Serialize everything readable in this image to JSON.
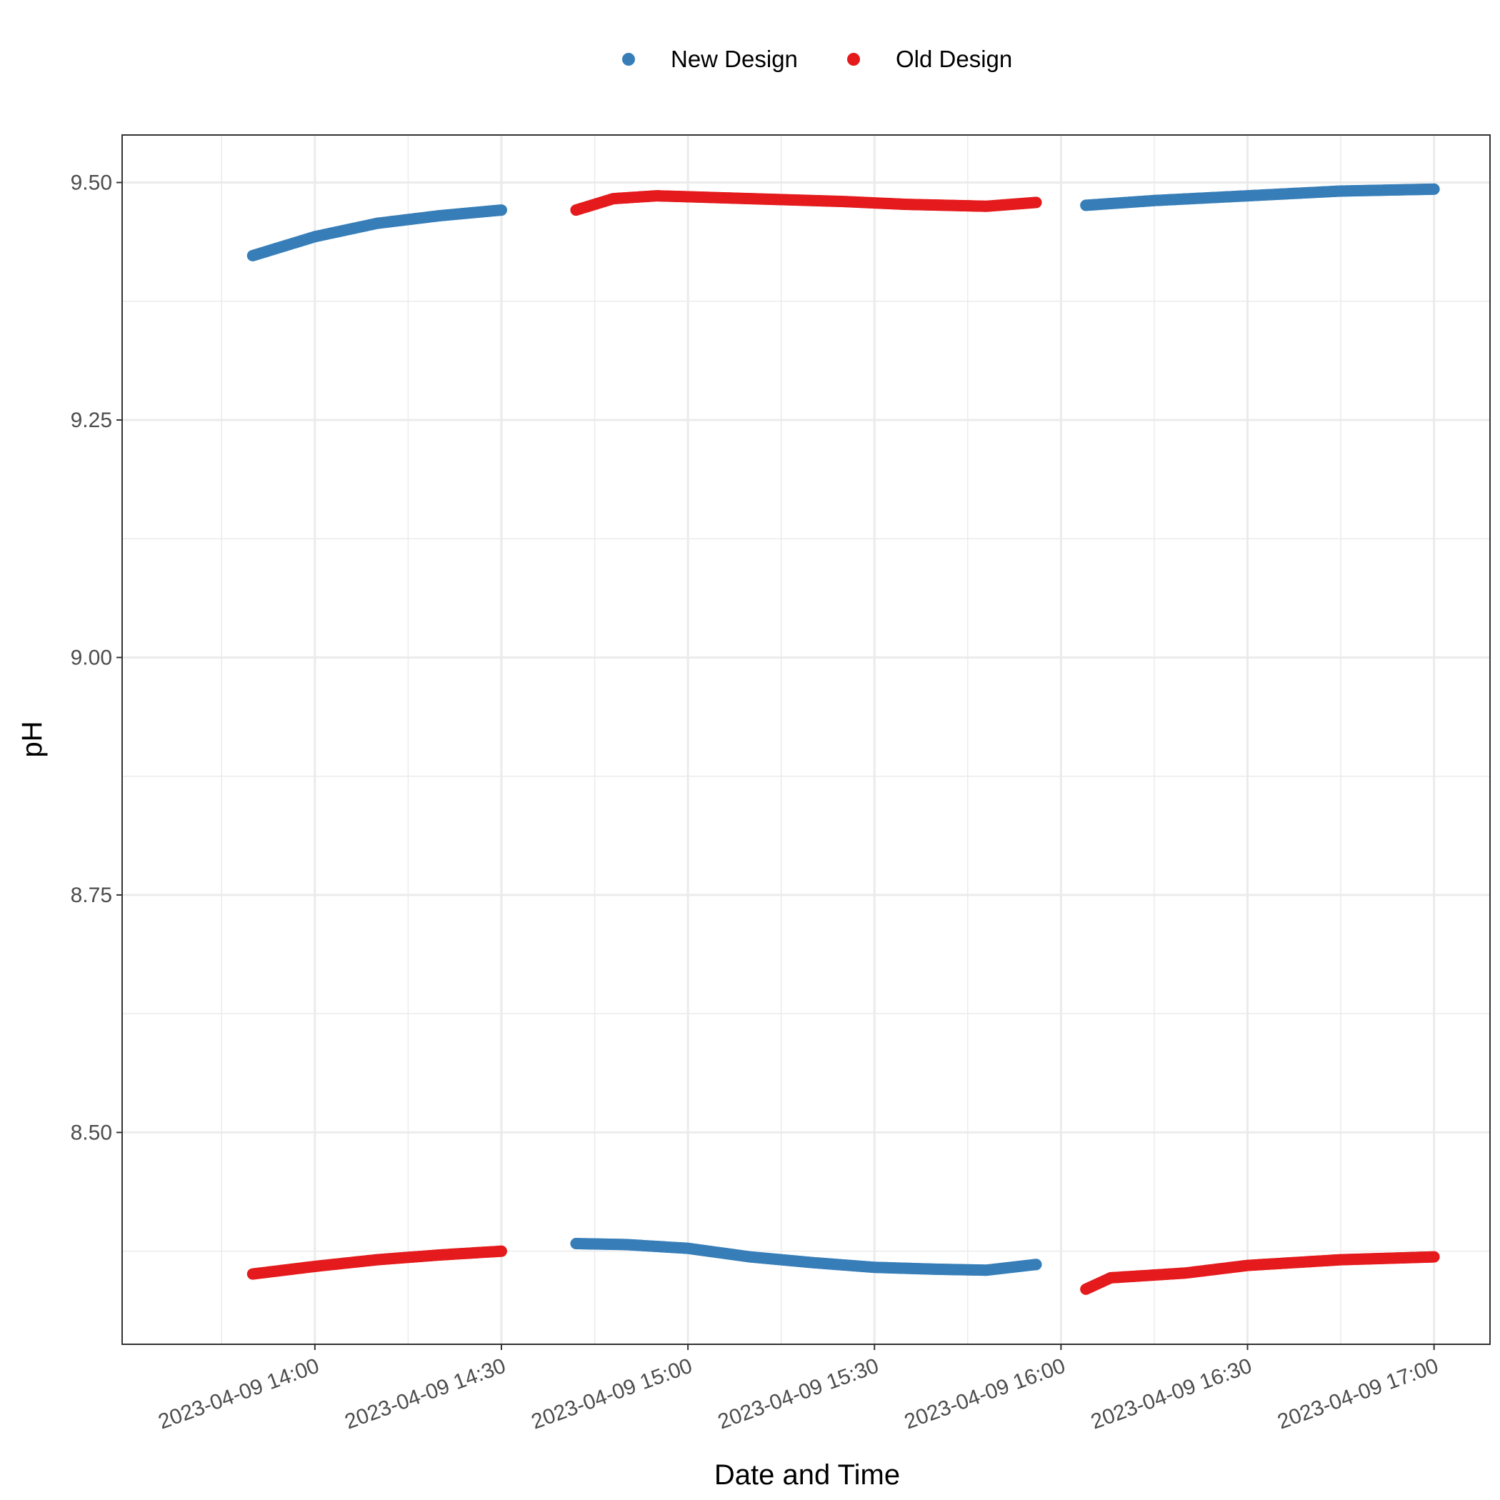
{
  "chart_data": {
    "type": "scatter",
    "xlabel": "Date and Time",
    "ylabel": "pH",
    "x_ticks": [
      "2023-04-09 14:00",
      "2023-04-09 14:30",
      "2023-04-09 15:00",
      "2023-04-09 15:30",
      "2023-04-09 16:00",
      "2023-04-09 16:30",
      "2023-04-09 17:00"
    ],
    "y_ticks": [
      "8.50",
      "8.75",
      "9.00",
      "9.25",
      "9.50"
    ],
    "xlim": [
      "2023-04-09 13:29",
      "2023-04-09 17:09"
    ],
    "ylim": [
      8.277,
      9.55
    ],
    "grid": true,
    "legend_position": "top",
    "series": [
      {
        "name": "New Design",
        "color": "#377eb8",
        "segments": [
          {
            "points": [
              [
                "2023-04-09 13:50",
                9.423
              ],
              [
                "2023-04-09 14:00",
                9.443
              ],
              [
                "2023-04-09 14:10",
                9.457
              ],
              [
                "2023-04-09 14:20",
                9.465
              ],
              [
                "2023-04-09 14:30",
                9.471
              ]
            ]
          },
          {
            "points": [
              [
                "2023-04-09 14:42",
                8.383
              ],
              [
                "2023-04-09 14:50",
                8.382
              ],
              [
                "2023-04-09 15:00",
                8.378
              ],
              [
                "2023-04-09 15:10",
                8.369
              ],
              [
                "2023-04-09 15:20",
                8.363
              ],
              [
                "2023-04-09 15:30",
                8.358
              ],
              [
                "2023-04-09 15:40",
                8.356
              ],
              [
                "2023-04-09 15:48",
                8.355
              ],
              [
                "2023-04-09 15:56",
                8.361
              ]
            ]
          },
          {
            "points": [
              [
                "2023-04-09 16:04",
                9.476
              ],
              [
                "2023-04-09 16:15",
                9.481
              ],
              [
                "2023-04-09 16:30",
                9.486
              ],
              [
                "2023-04-09 16:45",
                9.491
              ],
              [
                "2023-04-09 17:00",
                9.493
              ]
            ]
          }
        ]
      },
      {
        "name": "Old Design",
        "color": "#e41a1c",
        "segments": [
          {
            "points": [
              [
                "2023-04-09 13:50",
                8.351
              ],
              [
                "2023-04-09 14:00",
                8.359
              ],
              [
                "2023-04-09 14:10",
                8.366
              ],
              [
                "2023-04-09 14:20",
                8.371
              ],
              [
                "2023-04-09 14:30",
                8.375
              ]
            ]
          },
          {
            "points": [
              [
                "2023-04-09 14:42",
                9.471
              ],
              [
                "2023-04-09 14:48",
                9.483
              ],
              [
                "2023-04-09 14:55",
                9.486
              ],
              [
                "2023-04-09 15:05",
                9.484
              ],
              [
                "2023-04-09 15:15",
                9.482
              ],
              [
                "2023-04-09 15:25",
                9.48
              ],
              [
                "2023-04-09 15:35",
                9.477
              ],
              [
                "2023-04-09 15:48",
                9.475
              ],
              [
                "2023-04-09 15:56",
                9.479
              ]
            ]
          },
          {
            "points": [
              [
                "2023-04-09 16:04",
                8.335
              ],
              [
                "2023-04-09 16:08",
                8.347
              ],
              [
                "2023-04-09 16:20",
                8.352
              ],
              [
                "2023-04-09 16:30",
                8.36
              ],
              [
                "2023-04-09 16:45",
                8.366
              ],
              [
                "2023-04-09 17:00",
                8.369
              ]
            ]
          }
        ]
      }
    ]
  }
}
